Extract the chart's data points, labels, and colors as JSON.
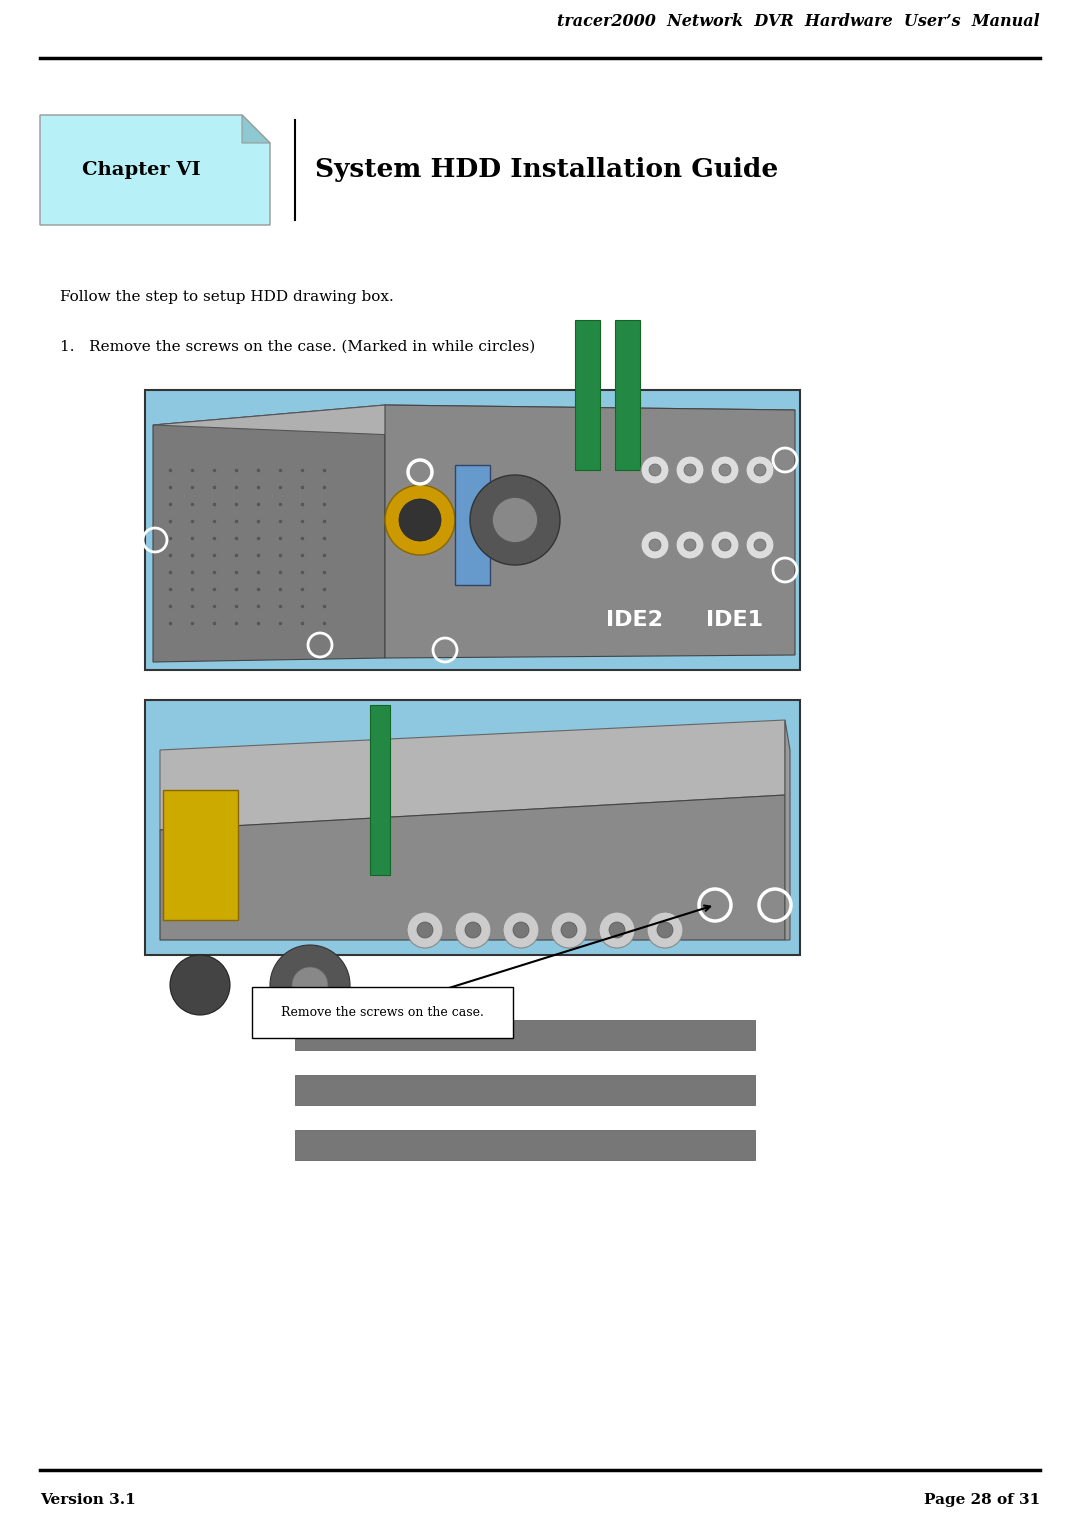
{
  "page_width": 10.8,
  "page_height": 15.29,
  "dpi": 100,
  "background_color": "#ffffff",
  "header_line_color": "#000000",
  "header_text": "tracer2000  Network  DVR  Hardware  User’s  Manual",
  "header_text_size": 11.5,
  "chapter_box_color": "#b8f0f8",
  "chapter_box_border": "#999999",
  "chapter_label": "Chapter VI",
  "chapter_label_size": 14,
  "chapter_title": "System HDD Installation Guide",
  "chapter_title_size": 19,
  "body_text1": "Follow the step to setup HDD drawing box.",
  "body_text1_size": 11,
  "step_text": "1.   Remove the screws on the case. (Marked in while circles)",
  "step_text_size": 11,
  "callout_text": "Remove the screws on the case.",
  "callout_text_size": 9,
  "footer_left": "Version 3.1",
  "footer_right": "Page 28 of 31",
  "footer_text_size": 11,
  "img1_bg": "#8dc8e0",
  "img2_bg": "#8dc8e0",
  "dvr_gray": "#8a8a8a",
  "dvr_dark": "#555555",
  "dvr_light": "#aaaaaa",
  "dvr_top": "#999999"
}
